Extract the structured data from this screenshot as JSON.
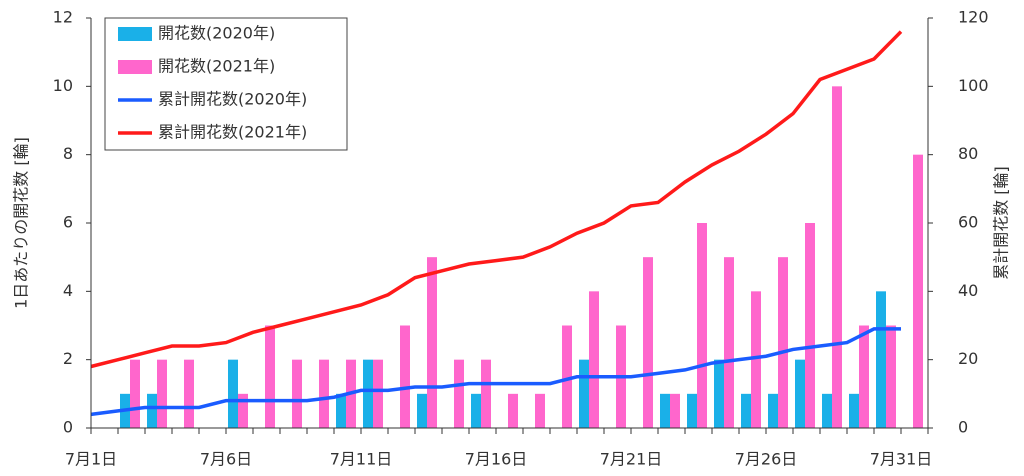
{
  "chart_data": {
    "type": "bar_line",
    "ylabel": "1日あたりの開花数 [輪]",
    "y2label": "累計開花数 [輪]",
    "categories": [
      "7月1日",
      null,
      null,
      null,
      null,
      "7月6日",
      null,
      null,
      null,
      null,
      "7月11日",
      null,
      null,
      null,
      null,
      "7月16日",
      null,
      null,
      null,
      null,
      "7月21日",
      null,
      null,
      null,
      null,
      "7月26日",
      null,
      null,
      null,
      null,
      "7月31日"
    ],
    "series": [
      {
        "name": "開花数(2020年)",
        "type": "bar",
        "color": "#1ab0e8",
        "values": [
          0,
          1,
          1,
          0,
          0,
          2,
          0,
          0,
          0,
          1,
          2,
          0,
          1,
          0,
          1,
          0,
          0,
          0,
          2,
          0,
          0,
          1,
          1,
          2,
          1,
          1,
          2,
          1,
          1,
          4,
          0
        ]
      },
      {
        "name": "開花数(2021年)",
        "type": "bar",
        "color": "#ff66cc",
        "values": [
          0,
          2,
          2,
          2,
          0,
          1,
          3,
          2,
          2,
          2,
          2,
          3,
          5,
          2,
          2,
          1,
          1,
          3,
          4,
          3,
          5,
          1,
          6,
          5,
          4,
          5,
          6,
          10,
          3,
          3,
          8
        ]
      },
      {
        "name": "累計開花数(2020年)",
        "type": "line",
        "axis": "y2",
        "color": "#1a5cff",
        "values": [
          4,
          5,
          6,
          6,
          6,
          8,
          8,
          8,
          8,
          9,
          11,
          11,
          12,
          12,
          13,
          13,
          13,
          13,
          15,
          15,
          15,
          16,
          17,
          19,
          20,
          21,
          23,
          24,
          25,
          29,
          29
        ]
      },
      {
        "name": "累計開花数(2021年)",
        "type": "line",
        "axis": "y2",
        "color": "#ff1a1a",
        "values": [
          18,
          20,
          22,
          24,
          24,
          25,
          28,
          30,
          32,
          34,
          36,
          39,
          44,
          46,
          48,
          49,
          50,
          53,
          57,
          60,
          65,
          66,
          72,
          77,
          81,
          86,
          92,
          102,
          105,
          108,
          116
        ]
      }
    ],
    "ylim": [
      0,
      12
    ],
    "yticks": [
      0,
      2,
      4,
      6,
      8,
      10,
      12
    ],
    "y2lim": [
      0,
      120
    ],
    "y2ticks": [
      0,
      20,
      40,
      60,
      80,
      100,
      120
    ],
    "legend": "upper left"
  }
}
